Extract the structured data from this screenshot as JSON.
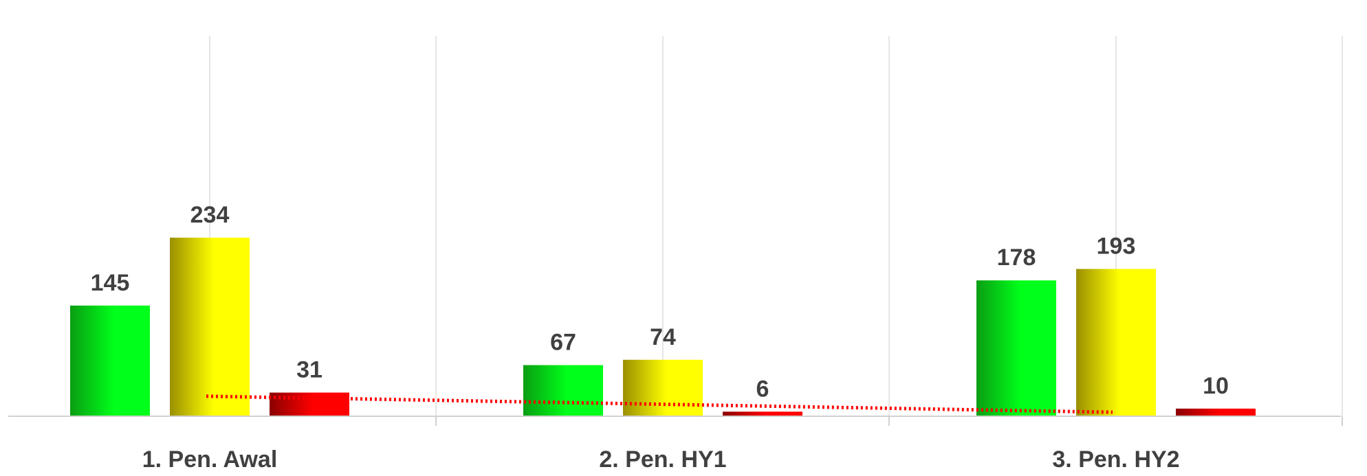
{
  "chart_data": {
    "type": "bar",
    "categories": [
      "1. Pen. Awal",
      "2. Pen. HY1",
      "3. Pen. HY2"
    ],
    "series": [
      {
        "values": [
          145,
          67,
          178
        ],
        "color_dark": "#0a9e12",
        "color_light": "#00ff1a"
      },
      {
        "values": [
          234,
          74,
          193
        ],
        "color_dark": "#9a8f00",
        "color_light": "#ffff00"
      },
      {
        "values": [
          31,
          6,
          10
        ],
        "color_dark": "#8b0000",
        "color_light": "#ff0000"
      }
    ],
    "trendline": {
      "series_index": 2,
      "style": "dotted",
      "color": "#ff0000"
    },
    "ylim": [
      0,
      260
    ],
    "grid": true,
    "legend": "none",
    "title": "",
    "xlabel": "",
    "ylabel": ""
  }
}
